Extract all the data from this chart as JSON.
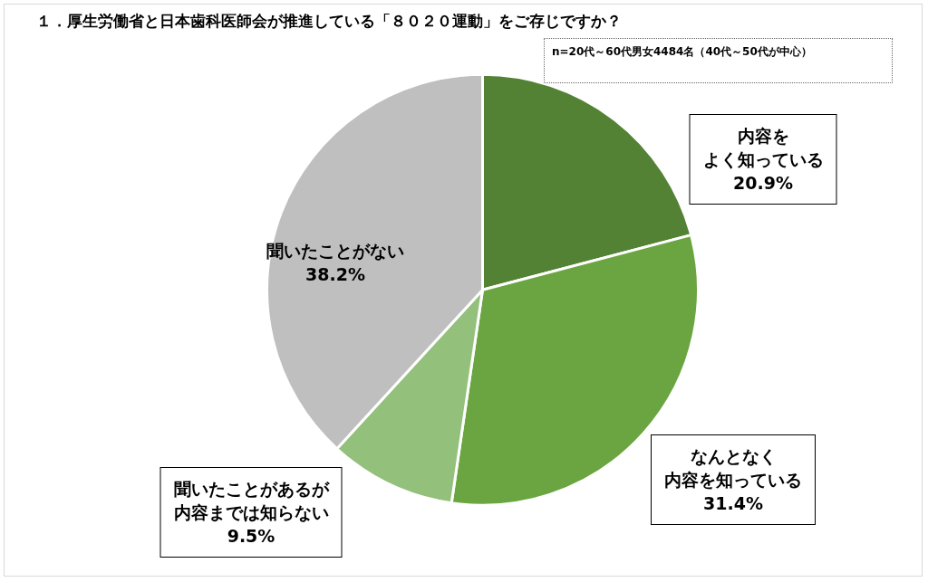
{
  "chart_data": {
    "type": "pie",
    "title": "１．厚生労働省と日本歯科医師会が推進している「８０２０運動」をご存じですか？",
    "subtitle": "n=20代～60代男女4484名（40代～50代が中心）",
    "categories": [
      "内容をよく知っている",
      "なんとなく内容を知っている",
      "聞いたことがあるが内容までは知らない",
      "聞いたことがない"
    ],
    "values": [
      20.9,
      31.4,
      9.5,
      38.2
    ],
    "value_labels": [
      "20.9%",
      "31.4%",
      "9.5%",
      "38.2%"
    ],
    "colors": [
      "#548235",
      "#6aa541",
      "#93c07b",
      "#bfbfbf"
    ],
    "legend": false
  }
}
